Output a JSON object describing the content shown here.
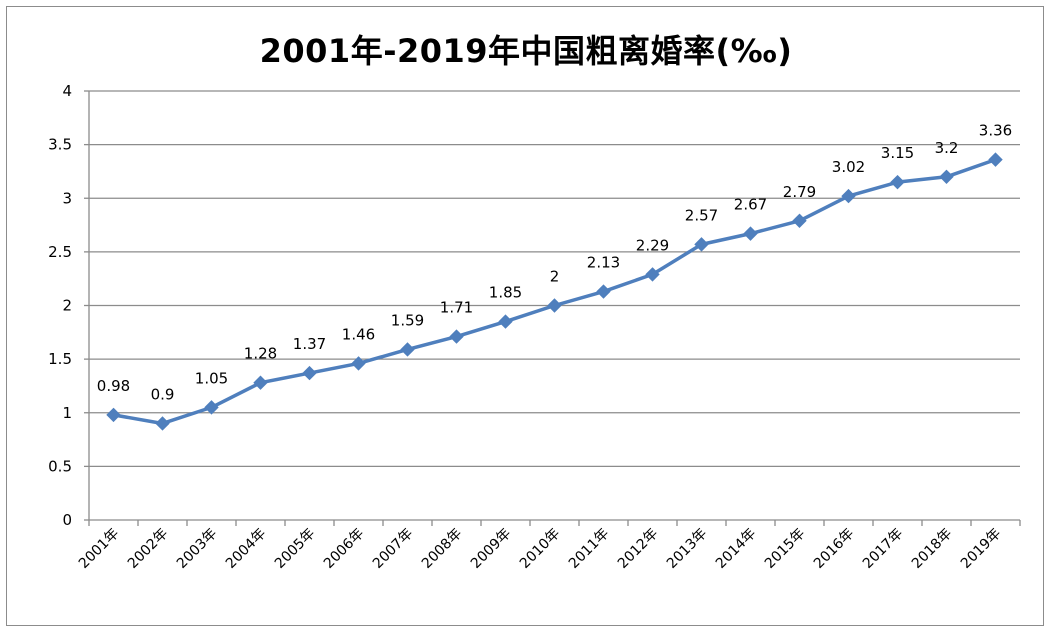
{
  "chart_data": {
    "type": "line",
    "title": "2001年-2019年中国粗离婚率(‰)",
    "categories": [
      "2001年",
      "2002年",
      "2003年",
      "2004年",
      "2005年",
      "2006年",
      "2007年",
      "2008年",
      "2009年",
      "2010年",
      "2011年",
      "2012年",
      "2013年",
      "2014年",
      "2015年",
      "2016年",
      "2017年",
      "2018年",
      "2019年"
    ],
    "series": [
      {
        "values": [
          0.98,
          0.9,
          1.05,
          1.28,
          1.37,
          1.46,
          1.59,
          1.71,
          1.85,
          2,
          2.13,
          2.29,
          2.57,
          2.67,
          2.79,
          3.02,
          3.15,
          3.2,
          3.36
        ],
        "data_labels": [
          "0.98",
          "0.9",
          "1.05",
          "1.28",
          "1.37",
          "1.46",
          "1.59",
          "1.71",
          "1.85",
          "2",
          "2.13",
          "2.29",
          "2.57",
          "2.67",
          "2.79",
          "3.02",
          "3.15",
          "3.2",
          "3.36"
        ],
        "color": "#4f7fbd",
        "marker": "diamond"
      }
    ],
    "y_ticks": [
      "0",
      "0.5",
      "1",
      "1.5",
      "2",
      "2.5",
      "3",
      "3.5",
      "4"
    ],
    "ylim": [
      0,
      4
    ],
    "grid": "horizontal",
    "gridline_color": "#8c8c8c",
    "legend": "none"
  }
}
